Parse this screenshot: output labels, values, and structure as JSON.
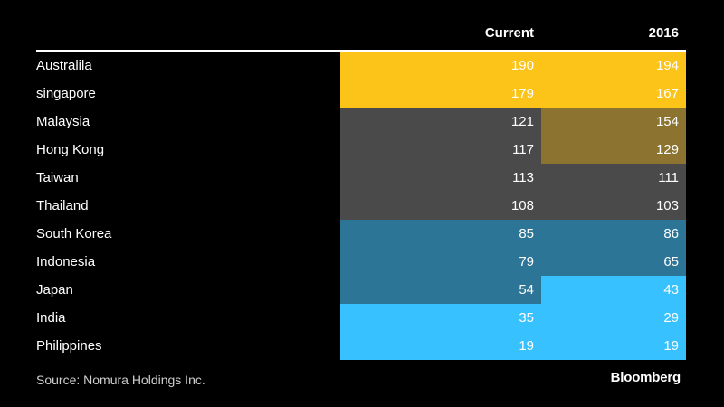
{
  "chart_data": {
    "type": "table",
    "columns": [
      "Current",
      "2016"
    ],
    "rows": [
      {
        "country": "Australila",
        "current": "190",
        "y2016": "194",
        "current_color": "#fcc419",
        "y2016_color": "#fcc419"
      },
      {
        "country": "singapore",
        "current": "179",
        "y2016": "167",
        "current_color": "#fcc419",
        "y2016_color": "#fcc419"
      },
      {
        "country": "Malaysia",
        "current": "121",
        "y2016": "154",
        "current_color": "#4a4a4a",
        "y2016_color": "#8c7330"
      },
      {
        "country": "Hong Kong",
        "current": "117",
        "y2016": "129",
        "current_color": "#4a4a4a",
        "y2016_color": "#8c7330"
      },
      {
        "country": "Taiwan",
        "current": "113",
        "y2016": "111",
        "current_color": "#4a4a4a",
        "y2016_color": "#4a4a4a"
      },
      {
        "country": "Thailand",
        "current": "108",
        "y2016": "103",
        "current_color": "#4a4a4a",
        "y2016_color": "#4a4a4a"
      },
      {
        "country": "South Korea",
        "current": "85",
        "y2016": "86",
        "current_color": "#2d7596",
        "y2016_color": "#2d7596"
      },
      {
        "country": "Indonesia",
        "current": "79",
        "y2016": "65",
        "current_color": "#2d7596",
        "y2016_color": "#2d7596"
      },
      {
        "country": "Japan",
        "current": "54",
        "y2016": "43",
        "current_color": "#2d7596",
        "y2016_color": "#37c2ff"
      },
      {
        "country": "India",
        "current": "35",
        "y2016": "29",
        "current_color": "#37c2ff",
        "y2016_color": "#37c2ff"
      },
      {
        "country": "Philippines",
        "current": "19",
        "y2016": "19",
        "current_color": "#37c2ff",
        "y2016_color": "#37c2ff"
      }
    ]
  },
  "footer": {
    "source": "Source: Nomura Holdings Inc.",
    "brand": "Bloomberg"
  }
}
